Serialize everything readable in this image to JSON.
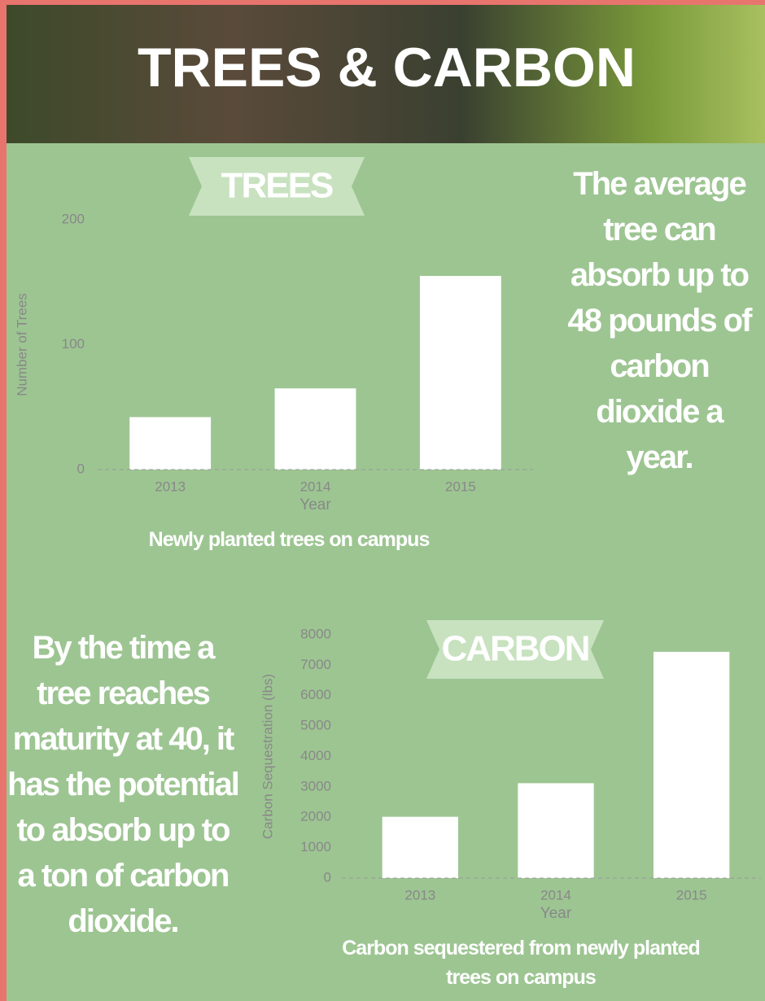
{
  "header": {
    "title": "TREES & CARBON"
  },
  "facts": [
    "The average tree can absorb up to 48 pounds of carbon dioxide a year.",
    "By the time a tree reaches maturity at 40, it has the potential to absorb up to a ton of carbon dioxide."
  ],
  "chart_data": [
    {
      "type": "bar",
      "heading": "TREES",
      "title": "Newly planted trees on campus",
      "x_label": "Year",
      "y_label": "Number of Trees",
      "categories": [
        "2013",
        "2014",
        "2015"
      ],
      "values": [
        42,
        65,
        155
      ],
      "color": "#ffffff",
      "ylim": [
        0,
        200
      ],
      "yticks": [
        0,
        100,
        200
      ],
      "grid": false
    },
    {
      "type": "bar",
      "heading": "CARBON",
      "title": "Carbon sequestered from newly planted trees on campus",
      "x_label": "Year",
      "y_label": "Carbon Sequestration (lbs)",
      "categories": [
        "2013",
        "2014",
        "2015"
      ],
      "values": [
        2016,
        3120,
        7440
      ],
      "color": "#ffffff",
      "ylim": [
        0,
        8000
      ],
      "yticks": [
        0,
        1000,
        2000,
        3000,
        4000,
        5000,
        6000,
        7000,
        8000
      ],
      "grid": false
    }
  ]
}
